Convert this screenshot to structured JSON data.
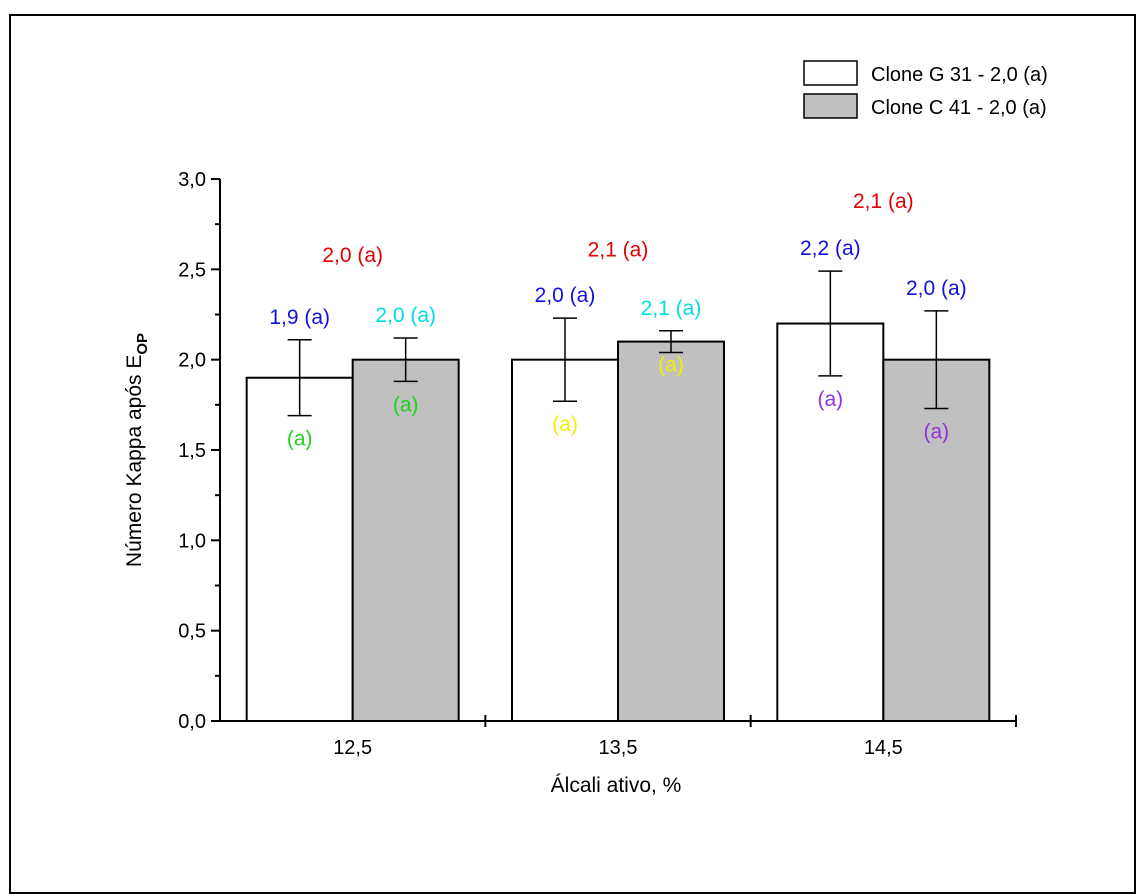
{
  "chart_data": {
    "type": "bar",
    "categories": [
      "12,5",
      "13,5",
      "14,5"
    ],
    "xlabel": "Álcali ativo, %",
    "ylabel_main": "Número Kappa após E",
    "ylabel_sub": "OP",
    "ylim": [
      0,
      3
    ],
    "yticks": [
      "0,0",
      "0,5",
      "1,0",
      "1,5",
      "2,0",
      "2,5",
      "3,0"
    ],
    "grid": false,
    "legend_position": "top-right",
    "series": [
      {
        "name": "Clone G 31 - 2,0 (a)",
        "fill": "#ffffff",
        "values": [
          1.9,
          2.0,
          2.2
        ],
        "err_upper": [
          2.11,
          2.23,
          2.49
        ],
        "err_lower": [
          1.69,
          1.77,
          1.91
        ],
        "top_labels": [
          "1,9 (a)",
          "2,0 (a)",
          "2,2 (a)"
        ],
        "inner_labels": [
          "(a)",
          "(a)",
          "(a)"
        ]
      },
      {
        "name": "Clone C 41 - 2,0 (a)",
        "fill": "#c0c0c0",
        "values": [
          2.0,
          2.1,
          2.0
        ],
        "err_upper": [
          2.12,
          2.16,
          2.27
        ],
        "err_lower": [
          1.88,
          2.04,
          1.73
        ],
        "top_labels": [
          "2,0 (a)",
          "2,1 (a)",
          "2,0 (a)"
        ],
        "inner_labels": [
          "(a)",
          "(a)",
          "(a)"
        ]
      }
    ],
    "group_labels": [
      "2,0 (a)",
      "2,1 (a)",
      "2,1 (a)"
    ],
    "group_label_values": [
      2.54,
      2.57,
      2.84
    ],
    "annotation_colors": {
      "group": "#e00000",
      "top": [
        "#1010e0",
        "#1010e0",
        "#1010e0"
      ],
      "top_s2": [
        "#00e0e0",
        "#00e0e0",
        "#1010e0"
      ],
      "inner": [
        "#20d020",
        "#f0f000",
        "#9030e0"
      ]
    }
  }
}
